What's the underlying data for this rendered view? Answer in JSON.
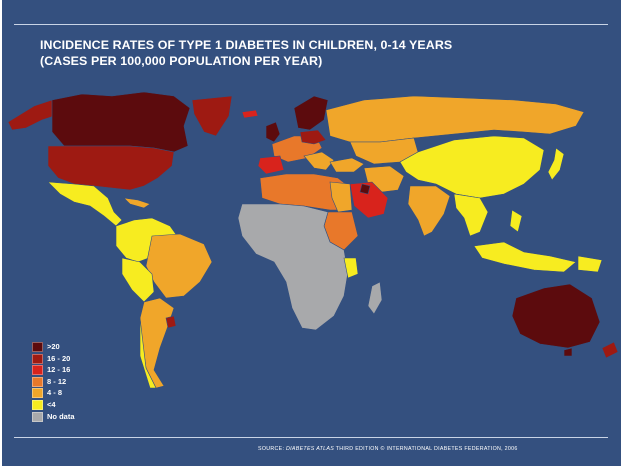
{
  "title": {
    "line1": "INCIDENCE RATES OF TYPE 1 DIABETES IN CHILDREN, 0-14 YEARS",
    "line2": "(CASES PER 100,000 POPULATION PER YEAR)"
  },
  "legend": [
    {
      "label": ">20",
      "color": "#5c0b0d"
    },
    {
      "label": "16 - 20",
      "color": "#9e1a12"
    },
    {
      "label": "12 - 16",
      "color": "#d8231c"
    },
    {
      "label": "8 - 12",
      "color": "#e8782a"
    },
    {
      "label": "4 - 8",
      "color": "#f0a62a"
    },
    {
      "label": "<4",
      "color": "#f7ec20"
    },
    {
      "label": "No data",
      "color": "#a8a9ab"
    }
  ],
  "source": {
    "prefix": "SOURCE: ",
    "atlas": "DIABETES ATLAS",
    "suffix": " THIRD EDITION © INTERNATIONAL DIABETES FEDERATION, 2006"
  },
  "colors": {
    "background": "#34507f",
    "rule": "#c9d4e6",
    "border": "#ffffff"
  }
}
